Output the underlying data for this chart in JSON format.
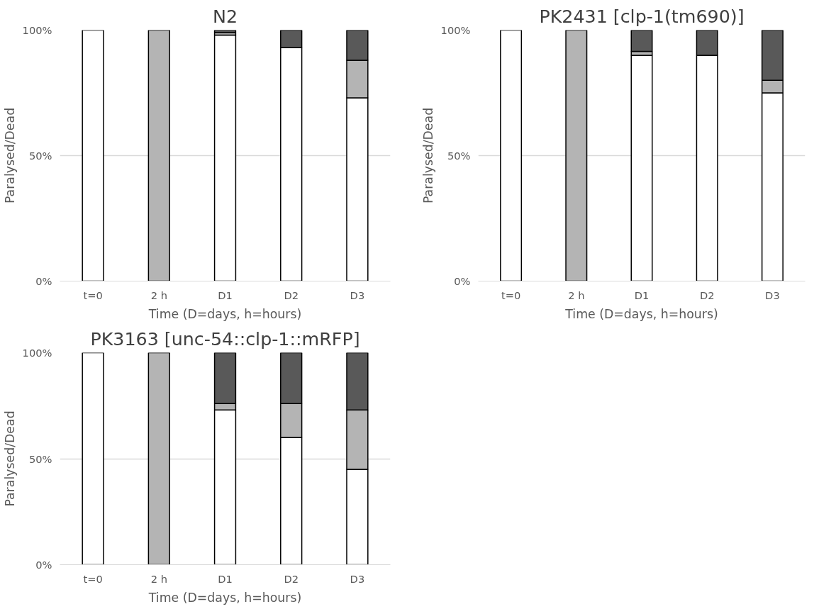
{
  "chart_data": [
    {
      "type": "bar",
      "title": "N2",
      "xlabel": "Time (D=days, h=hours)",
      "ylabel": "Paralysed/Dead",
      "categories": [
        "t=0",
        "2 h",
        "D1",
        "D2",
        "D3"
      ],
      "stacked": true,
      "ylim": [
        0,
        100
      ],
      "yticks": [
        {
          "value": 0,
          "label": "0%"
        },
        {
          "value": 50,
          "label": "50%"
        },
        {
          "value": 100,
          "label": "100%"
        }
      ],
      "grid": "y",
      "series": [
        {
          "color": "#ffffff",
          "values": [
            100,
            0,
            98,
            93,
            73
          ]
        },
        {
          "color": "#b4b4b4",
          "values": [
            0,
            100,
            1,
            0,
            15
          ]
        },
        {
          "color": "#595959",
          "values": [
            0,
            0,
            1,
            7,
            12
          ]
        }
      ]
    },
    {
      "type": "bar",
      "title": "PK2431 [clp-1(tm690)]",
      "xlabel": "Time (D=days, h=hours)",
      "ylabel": "Paralysed/Dead",
      "categories": [
        "t=0",
        "2 h",
        "D1",
        "D2",
        "D3"
      ],
      "stacked": true,
      "ylim": [
        0,
        100
      ],
      "yticks": [
        {
          "value": 0,
          "label": "0%"
        },
        {
          "value": 50,
          "label": "50%"
        },
        {
          "value": 100,
          "label": "100%"
        }
      ],
      "grid": "y",
      "series": [
        {
          "color": "#ffffff",
          "values": [
            100,
            0,
            90,
            90,
            75
          ]
        },
        {
          "color": "#b4b4b4",
          "values": [
            0,
            100,
            1.5,
            0,
            5
          ]
        },
        {
          "color": "#595959",
          "values": [
            0,
            0,
            8.5,
            10,
            20
          ]
        }
      ]
    },
    {
      "type": "bar",
      "title": "PK3163 [unc-54::clp-1::mRFP]",
      "xlabel": "Time (D=days, h=hours)",
      "ylabel": "Paralysed/Dead",
      "categories": [
        "t=0",
        "2 h",
        "D1",
        "D2",
        "D3"
      ],
      "stacked": true,
      "ylim": [
        0,
        100
      ],
      "yticks": [
        {
          "value": 0,
          "label": "0%"
        },
        {
          "value": 50,
          "label": "50%"
        },
        {
          "value": 100,
          "label": "100%"
        }
      ],
      "grid": "y",
      "series": [
        {
          "color": "#ffffff",
          "values": [
            100,
            0,
            73,
            60,
            45
          ]
        },
        {
          "color": "#b4b4b4",
          "values": [
            0,
            100,
            3,
            16,
            28
          ]
        },
        {
          "color": "#595959",
          "values": [
            0,
            0,
            24,
            24,
            27
          ]
        }
      ]
    }
  ]
}
